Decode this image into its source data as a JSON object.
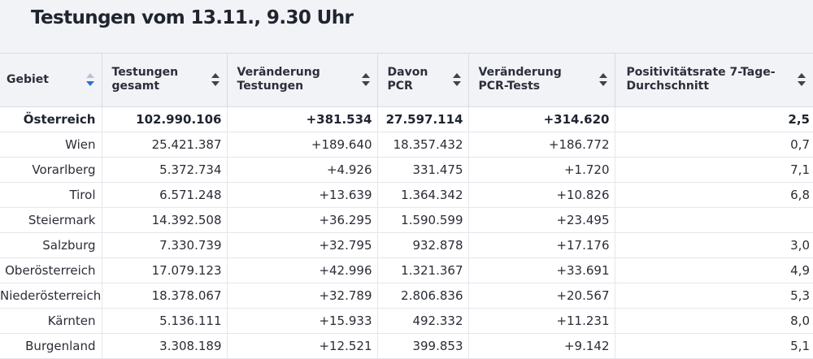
{
  "title": "Testungen vom 13.11., 9.30 Uhr",
  "columns": [
    {
      "label": "Gebiet",
      "sort": "descending"
    },
    {
      "label": "Testungen gesamt",
      "sort": "none"
    },
    {
      "label": "Veränderung Testungen",
      "sort": "none"
    },
    {
      "label": "Davon PCR",
      "sort": "none"
    },
    {
      "label": "Veränderung PCR-Tests",
      "sort": "none"
    },
    {
      "label": "Positivitätsrate 7-Tage-Durchschnitt",
      "sort": "none"
    }
  ],
  "rows": [
    {
      "gebiet": "Österreich",
      "testungen": "102.990.106",
      "veraenderung": "+381.534",
      "pcr": "27.597.114",
      "veraenderung_pcr": "+314.620",
      "positivitaet": "2,5"
    },
    {
      "gebiet": "Wien",
      "testungen": "25.421.387",
      "veraenderung": "+189.640",
      "pcr": "18.357.432",
      "veraenderung_pcr": "+186.772",
      "positivitaet": "0,7"
    },
    {
      "gebiet": "Vorarlberg",
      "testungen": "5.372.734",
      "veraenderung": "+4.926",
      "pcr": "331.475",
      "veraenderung_pcr": "+1.720",
      "positivitaet": "7,1"
    },
    {
      "gebiet": "Tirol",
      "testungen": "6.571.248",
      "veraenderung": "+13.639",
      "pcr": "1.364.342",
      "veraenderung_pcr": "+10.826",
      "positivitaet": "6,8"
    },
    {
      "gebiet": "Steiermark",
      "testungen": "14.392.508",
      "veraenderung": "+36.295",
      "pcr": "1.590.599",
      "veraenderung_pcr": "+23.495",
      "positivitaet": ""
    },
    {
      "gebiet": "Salzburg",
      "testungen": "7.330.739",
      "veraenderung": "+32.795",
      "pcr": "932.878",
      "veraenderung_pcr": "+17.176",
      "positivitaet": "3,0"
    },
    {
      "gebiet": "Oberösterreich",
      "testungen": "17.079.123",
      "veraenderung": "+42.996",
      "pcr": "1.321.367",
      "veraenderung_pcr": "+33.691",
      "positivitaet": "4,9"
    },
    {
      "gebiet": "Niederösterreich",
      "testungen": "18.378.067",
      "veraenderung": "+32.789",
      "pcr": "2.806.836",
      "veraenderung_pcr": "+20.567",
      "positivitaet": "5,3"
    },
    {
      "gebiet": "Kärnten",
      "testungen": "5.136.111",
      "veraenderung": "+15.933",
      "pcr": "492.332",
      "veraenderung_pcr": "+11.231",
      "positivitaet": "8,0"
    },
    {
      "gebiet": "Burgenland",
      "testungen": "3.308.189",
      "veraenderung": "+12.521",
      "pcr": "399.853",
      "veraenderung_pcr": "+9.142",
      "positivitaet": "5,1"
    }
  ],
  "icons": {
    "sort": "sort-arrows-icon"
  },
  "colors": {
    "header_bg": "#f2f3f6",
    "sort_active": "#2c6fd6"
  }
}
